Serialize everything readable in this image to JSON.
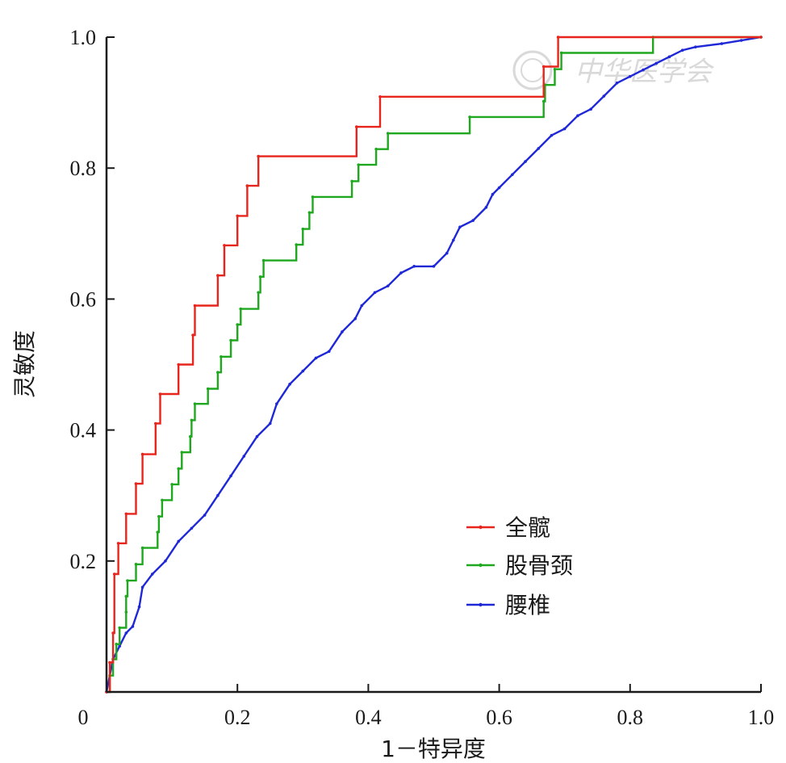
{
  "chart_data": {
    "type": "line",
    "title": "",
    "xlabel": "1－特异度",
    "ylabel": "灵敏度",
    "xlim": [
      0,
      1
    ],
    "ylim": [
      0,
      1
    ],
    "x_ticks": [
      "0",
      "0.2",
      "0.4",
      "0.6",
      "0.8",
      "1.0"
    ],
    "x_tick_values": [
      0,
      0.2,
      0.4,
      0.6,
      0.8,
      1.0
    ],
    "y_ticks": [
      "0.2",
      "0.4",
      "0.6",
      "0.8",
      "1.0"
    ],
    "y_tick_values": [
      0.2,
      0.4,
      0.6,
      0.8,
      1.0
    ],
    "grid": false,
    "legend_position": "bottom-right",
    "watermark": "中华医学会",
    "series": [
      {
        "name": "全髋",
        "color": "#e8251c",
        "step": true,
        "points": [
          [
            0,
            0
          ],
          [
            0.005,
            0.045
          ],
          [
            0.01,
            0.09
          ],
          [
            0.012,
            0.18
          ],
          [
            0.018,
            0.227
          ],
          [
            0.03,
            0.272
          ],
          [
            0.045,
            0.318
          ],
          [
            0.055,
            0.363
          ],
          [
            0.075,
            0.41
          ],
          [
            0.082,
            0.455
          ],
          [
            0.11,
            0.5
          ],
          [
            0.132,
            0.545
          ],
          [
            0.135,
            0.59
          ],
          [
            0.17,
            0.636
          ],
          [
            0.18,
            0.682
          ],
          [
            0.2,
            0.727
          ],
          [
            0.215,
            0.773
          ],
          [
            0.232,
            0.818
          ],
          [
            0.382,
            0.863
          ],
          [
            0.418,
            0.909
          ],
          [
            0.668,
            0.955
          ],
          [
            0.69,
            1.0
          ],
          [
            1.0,
            1.0
          ]
        ]
      },
      {
        "name": "股骨颈",
        "color": "#1fa81f",
        "step": true,
        "points": [
          [
            0,
            0
          ],
          [
            0.005,
            0.025
          ],
          [
            0.01,
            0.05
          ],
          [
            0.015,
            0.073
          ],
          [
            0.02,
            0.098
          ],
          [
            0.03,
            0.122
          ],
          [
            0.03,
            0.146
          ],
          [
            0.032,
            0.17
          ],
          [
            0.045,
            0.195
          ],
          [
            0.055,
            0.22
          ],
          [
            0.078,
            0.244
          ],
          [
            0.08,
            0.268
          ],
          [
            0.085,
            0.293
          ],
          [
            0.1,
            0.317
          ],
          [
            0.11,
            0.341
          ],
          [
            0.115,
            0.366
          ],
          [
            0.128,
            0.39
          ],
          [
            0.13,
            0.415
          ],
          [
            0.135,
            0.44
          ],
          [
            0.155,
            0.463
          ],
          [
            0.17,
            0.488
          ],
          [
            0.175,
            0.512
          ],
          [
            0.19,
            0.537
          ],
          [
            0.2,
            0.561
          ],
          [
            0.205,
            0.585
          ],
          [
            0.232,
            0.61
          ],
          [
            0.235,
            0.634
          ],
          [
            0.24,
            0.659
          ],
          [
            0.29,
            0.683
          ],
          [
            0.3,
            0.707
          ],
          [
            0.31,
            0.732
          ],
          [
            0.315,
            0.756
          ],
          [
            0.375,
            0.78
          ],
          [
            0.385,
            0.805
          ],
          [
            0.412,
            0.829
          ],
          [
            0.43,
            0.853
          ],
          [
            0.555,
            0.878
          ],
          [
            0.668,
            0.902
          ],
          [
            0.67,
            0.927
          ],
          [
            0.685,
            0.951
          ],
          [
            0.695,
            0.976
          ],
          [
            0.835,
            1.0
          ],
          [
            1.0,
            1.0
          ]
        ]
      },
      {
        "name": "腰椎",
        "color": "#1f28d6",
        "step": false,
        "points": [
          [
            0,
            0
          ],
          [
            0.01,
            0.05
          ],
          [
            0.02,
            0.07
          ],
          [
            0.03,
            0.09
          ],
          [
            0.04,
            0.1
          ],
          [
            0.05,
            0.13
          ],
          [
            0.055,
            0.16
          ],
          [
            0.07,
            0.18
          ],
          [
            0.09,
            0.2
          ],
          [
            0.11,
            0.23
          ],
          [
            0.13,
            0.25
          ],
          [
            0.15,
            0.27
          ],
          [
            0.17,
            0.3
          ],
          [
            0.19,
            0.33
          ],
          [
            0.21,
            0.36
          ],
          [
            0.23,
            0.39
          ],
          [
            0.25,
            0.41
          ],
          [
            0.26,
            0.44
          ],
          [
            0.28,
            0.47
          ],
          [
            0.3,
            0.49
          ],
          [
            0.32,
            0.51
          ],
          [
            0.34,
            0.52
          ],
          [
            0.36,
            0.55
          ],
          [
            0.38,
            0.57
          ],
          [
            0.39,
            0.59
          ],
          [
            0.41,
            0.61
          ],
          [
            0.43,
            0.62
          ],
          [
            0.45,
            0.64
          ],
          [
            0.47,
            0.65
          ],
          [
            0.5,
            0.65
          ],
          [
            0.52,
            0.67
          ],
          [
            0.53,
            0.69
          ],
          [
            0.54,
            0.71
          ],
          [
            0.56,
            0.72
          ],
          [
            0.58,
            0.74
          ],
          [
            0.59,
            0.76
          ],
          [
            0.6,
            0.77
          ],
          [
            0.62,
            0.79
          ],
          [
            0.64,
            0.81
          ],
          [
            0.66,
            0.83
          ],
          [
            0.68,
            0.85
          ],
          [
            0.7,
            0.86
          ],
          [
            0.72,
            0.88
          ],
          [
            0.74,
            0.89
          ],
          [
            0.76,
            0.91
          ],
          [
            0.78,
            0.93
          ],
          [
            0.8,
            0.94
          ],
          [
            0.82,
            0.95
          ],
          [
            0.84,
            0.96
          ],
          [
            0.86,
            0.97
          ],
          [
            0.88,
            0.98
          ],
          [
            0.9,
            0.985
          ],
          [
            0.94,
            0.99
          ],
          [
            0.97,
            0.995
          ],
          [
            1.0,
            1.0
          ]
        ]
      }
    ]
  }
}
